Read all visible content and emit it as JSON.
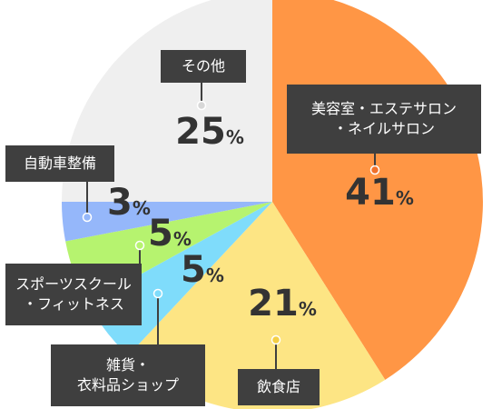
{
  "chart_data": {
    "type": "pie",
    "slices": [
      {
        "label": "美容室・エステサロン・ネイルサロン",
        "label_lines": [
          "美容室・エステサロン",
          "・ネイルサロン"
        ],
        "value": 41,
        "color": "#ff9645"
      },
      {
        "label": "飲食店",
        "label_lines": [
          "飲食店"
        ],
        "value": 21,
        "color": "#fde584"
      },
      {
        "label": "雑貨・衣料品ショップ",
        "label_lines": [
          "雑貨・",
          "衣料品ショップ"
        ],
        "value": 5,
        "color": "#7fdcfb"
      },
      {
        "label": "スポーツスクール・フィットネス",
        "label_lines": [
          "スポーツスクール",
          "・フィットネス"
        ],
        "value": 5,
        "color": "#b6f36f"
      },
      {
        "label": "自動車整備",
        "label_lines": [
          "自動車整備"
        ],
        "value": 3,
        "color": "#95b7fa"
      },
      {
        "label": "その他",
        "label_lines": [
          "その他"
        ],
        "value": 25,
        "color": "#efefef"
      }
    ],
    "value_unit": "%",
    "title": "",
    "legend": "callouts"
  }
}
